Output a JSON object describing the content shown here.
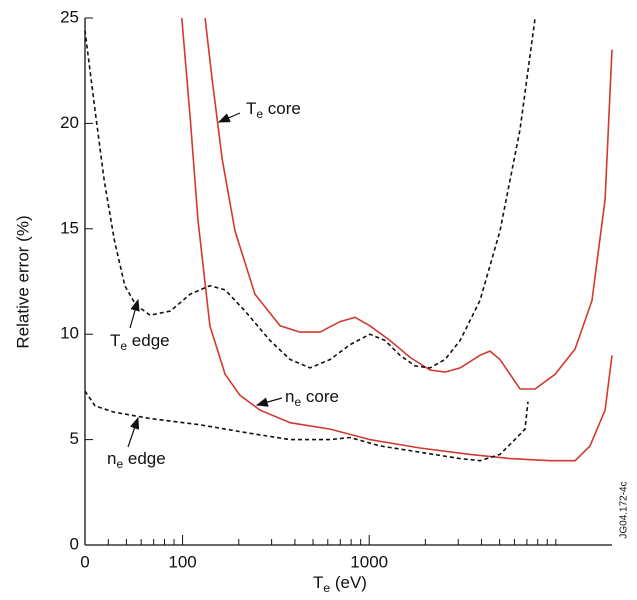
{
  "chart_data": {
    "type": "line",
    "xscale": "log",
    "ylabel": "Relative error (%)",
    "xlabel": [
      "T",
      "e",
      " (eV)"
    ],
    "side_text": "JG04.172-4c",
    "xlim": [
      30,
      20000
    ],
    "ylim": [
      0,
      25
    ],
    "xticks": [
      {
        "value": 30,
        "label": "0"
      },
      100,
      1000
    ],
    "xminor": [
      40,
      50,
      60,
      70,
      80,
      90,
      200,
      300,
      400,
      500,
      600,
      700,
      800,
      900,
      2000,
      3000,
      4000,
      5000,
      6000,
      7000,
      8000,
      9000,
      10000
    ],
    "yticks": [
      0,
      5,
      10,
      15,
      20,
      25
    ],
    "series": [
      {
        "label": [
          "T",
          "e",
          " core"
        ],
        "color": "#d03a30",
        "dash": false,
        "x": [
          132,
          144,
          163,
          191,
          244,
          333,
          426,
          545,
          698,
          839,
          1009,
          1292,
          1656,
          2118,
          2547,
          3069,
          3926,
          4436,
          5023,
          6427,
          7745,
          9908,
          12680,
          15630,
          18360,
          20000
        ],
        "values": [
          25,
          22.1,
          18.3,
          14.9,
          11.9,
          10.4,
          10.1,
          10.1,
          10.6,
          10.8,
          10.4,
          9.7,
          8.9,
          8.3,
          8.2,
          8.4,
          9.0,
          9.2,
          8.8,
          7.4,
          7.4,
          8.1,
          9.3,
          11.6,
          16.4,
          23.5
        ]
      },
      {
        "label": [
          "n",
          "e",
          " core"
        ],
        "color": "#d03a30",
        "dash": false,
        "x": [
          99,
          110,
          121,
          140,
          169,
          203,
          260,
          377,
          617,
          1009,
          1871,
          3467,
          5689,
          9311,
          12680,
          15240,
          18360,
          20000
        ],
        "values": [
          25,
          20.2,
          15.4,
          10.4,
          8.1,
          7.1,
          6.4,
          5.8,
          5.5,
          5.0,
          4.6,
          4.3,
          4.1,
          4.0,
          4.0,
          4.7,
          6.4,
          9.0
        ]
      },
      {
        "label": [
          "T",
          "e",
          " edge"
        ],
        "color": "#111111",
        "dash": true,
        "x": [
          30,
          34,
          38,
          43,
          49,
          56,
          67,
          86,
          110,
          140,
          169,
          216,
          294,
          377,
          482,
          617,
          789,
          1009,
          1216,
          1462,
          1758,
          2118,
          2547,
          3069,
          3926,
          5023,
          6427,
          7745
        ],
        "values": [
          24.4,
          20.6,
          17.3,
          14.5,
          12.3,
          11.4,
          10.9,
          11.1,
          11.9,
          12.3,
          12.1,
          11.1,
          9.7,
          8.8,
          8.4,
          8.8,
          9.5,
          10.0,
          9.7,
          9.0,
          8.5,
          8.4,
          8.8,
          9.7,
          11.6,
          14.9,
          19.7,
          25
        ]
      },
      {
        "label": [
          "n",
          "e",
          " edge"
        ],
        "color": "#111111",
        "dash": true,
        "x": [
          30,
          34,
          43,
          67,
          124,
          230,
          377,
          617,
          789,
          1143,
          1871,
          3069,
          3926,
          5023,
          6039,
          6839,
          7096
        ],
        "values": [
          7.3,
          6.6,
          6.3,
          6.0,
          5.7,
          5.3,
          5.0,
          5.0,
          5.1,
          4.7,
          4.4,
          4.1,
          4.0,
          4.3,
          5.0,
          5.5,
          6.8
        ]
      }
    ]
  }
}
